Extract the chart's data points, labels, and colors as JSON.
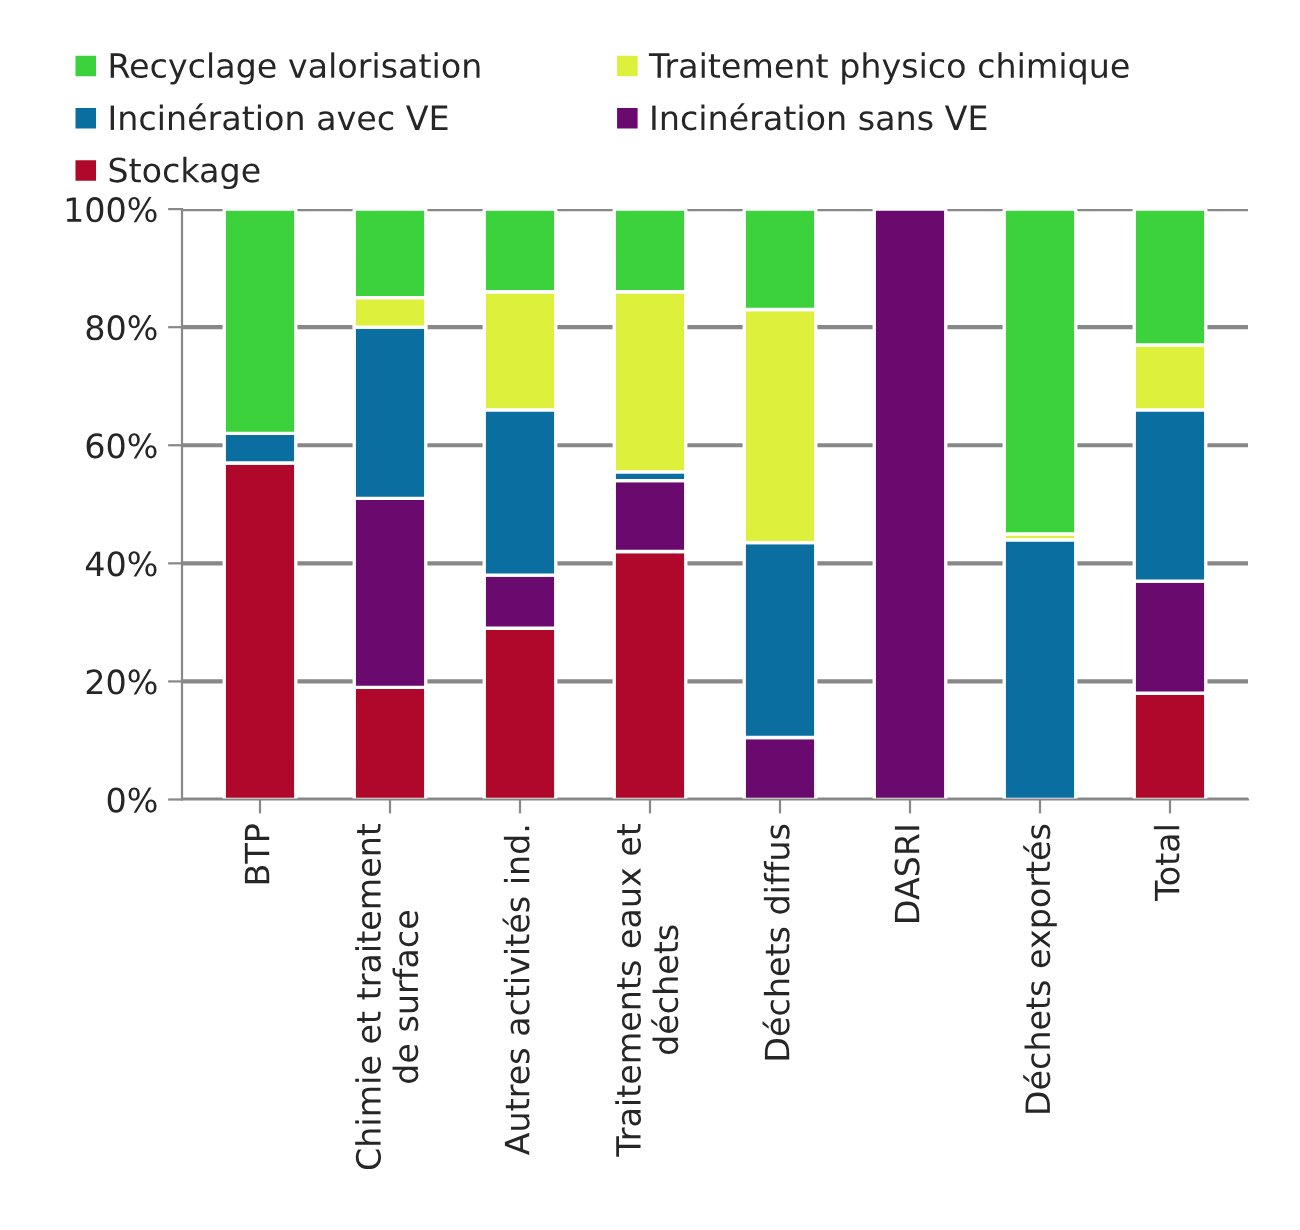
{
  "chart_data": {
    "type": "bar",
    "stacked": true,
    "categories": [
      "BTP",
      "Chimie et traitement\nde surface",
      "Autres activités ind.",
      "Traitements eaux et\ndéchets",
      "Déchets diffus",
      "DASRI",
      "Déchets exportés",
      "Total"
    ],
    "series": [
      {
        "name": "Stockage",
        "color": "#b0082a",
        "values": [
          57,
          19,
          29,
          42,
          null,
          null,
          null,
          18
        ]
      },
      {
        "name": "Incinération sans VE",
        "color": "#6a0a6e",
        "values": [
          null,
          32,
          9,
          12,
          10.5,
          100,
          null,
          19
        ]
      },
      {
        "name": "Incinération avec VE",
        "color": "#0a6ea0",
        "values": [
          5,
          29,
          28,
          1.5,
          33,
          null,
          44,
          29
        ]
      },
      {
        "name": "Traitement physico chimique",
        "color": "#dcf03c",
        "values": [
          null,
          5,
          20,
          30.5,
          39.5,
          null,
          1,
          11
        ]
      },
      {
        "name": "Recyclage valorisation",
        "color": "#3cd23c",
        "values": [
          38,
          15,
          14,
          14,
          17,
          null,
          55,
          23
        ]
      }
    ],
    "ylim": [
      0,
      100
    ],
    "yticks": [
      {
        "value": 0,
        "label": "0%"
      },
      {
        "value": 20,
        "label": "20%"
      },
      {
        "value": 40,
        "label": "40%"
      },
      {
        "value": 60,
        "label": "60%"
      },
      {
        "value": 80,
        "label": "80%"
      },
      {
        "value": 100,
        "label": "100%"
      }
    ],
    "grid": "y",
    "legend": "top"
  }
}
